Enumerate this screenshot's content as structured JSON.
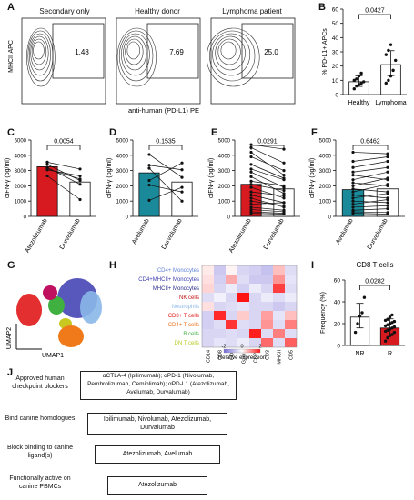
{
  "panel_labels": {
    "A": "A",
    "B": "B",
    "C": "C",
    "D": "D",
    "E": "E",
    "F": "F",
    "G": "G",
    "H": "H",
    "I": "I",
    "J": "J"
  },
  "panel_a": {
    "titles": [
      "Secondary only",
      "Healthy donor",
      "Lymphoma patient"
    ],
    "values": [
      "1.48",
      "7.69",
      "25.0"
    ],
    "y_label": "MHCII APC",
    "x_label": "anti-human (PD-L1) PE"
  },
  "chart_data": [
    {
      "id": "B",
      "type": "bar",
      "categories": [
        "Healthy",
        "Lymphoma"
      ],
      "values": [
        9,
        21
      ],
      "points": [
        [
          4,
          6,
          7,
          8,
          9,
          10,
          11,
          13,
          15
        ],
        [
          8,
          10,
          13,
          17,
          24,
          28,
          31,
          35
        ]
      ],
      "ylabel": "% PD-L1+ APCs",
      "ylim": [
        0,
        60
      ],
      "yticks": [
        0,
        10,
        20,
        30,
        40,
        50,
        60
      ],
      "pvalue": "0.0427",
      "colors": [
        "#ffffff",
        "#ffffff"
      ]
    },
    {
      "id": "C",
      "type": "bar-paired",
      "categories": [
        "Atezolizumab",
        "Durvalumab"
      ],
      "values": [
        3250,
        2250
      ],
      "pairs": [
        [
          3400,
          2350
        ],
        [
          3050,
          2650
        ],
        [
          3200,
          2100
        ],
        [
          3550,
          3100
        ],
        [
          2650,
          1100
        ],
        [
          3100,
          2450
        ]
      ],
      "ylabel": "cIFN-γ (pg/ml)",
      "ylim": [
        0,
        5000
      ],
      "yticks": [
        0,
        1000,
        2000,
        3000,
        4000,
        5000
      ],
      "pvalue": "0.0054",
      "colors": [
        "#d71920",
        "#ffffff"
      ]
    },
    {
      "id": "D",
      "type": "bar-paired",
      "categories": [
        "Avelumab",
        "Durvalumab"
      ],
      "values": [
        2850,
        2250
      ],
      "pairs": [
        [
          2350,
          3500
        ],
        [
          3350,
          3050
        ],
        [
          3150,
          1000
        ],
        [
          1050,
          1900
        ],
        [
          4050,
          2550
        ],
        [
          2050,
          1600
        ]
      ],
      "ylabel": "cIFN-γ (pg/ml)",
      "ylim": [
        0,
        5000
      ],
      "yticks": [
        0,
        1000,
        2000,
        3000,
        4000,
        5000
      ],
      "pvalue": "0.1535",
      "colors": [
        "#1a8a9a",
        "#ffffff"
      ]
    },
    {
      "id": "E",
      "type": "bar-paired",
      "categories": [
        "Atezolizumab",
        "Durvalumab"
      ],
      "values": [
        2100,
        1800
      ],
      "pairs": [
        [
          4700,
          4400
        ],
        [
          4500,
          3500
        ],
        [
          4200,
          2700
        ],
        [
          3900,
          3000
        ],
        [
          3400,
          2500
        ],
        [
          3100,
          2400
        ],
        [
          2900,
          1900
        ],
        [
          2600,
          1500
        ],
        [
          2300,
          2000
        ],
        [
          2100,
          1700
        ],
        [
          1900,
          1200
        ],
        [
          1600,
          1350
        ],
        [
          1400,
          900
        ],
        [
          1200,
          600
        ],
        [
          1000,
          700
        ],
        [
          800,
          900
        ],
        [
          600,
          400
        ],
        [
          450,
          300
        ],
        [
          300,
          200
        ],
        [
          200,
          150
        ]
      ],
      "ylabel": "cIFN-γ (pg/ml)",
      "ylim": [
        0,
        5000
      ],
      "yticks": [
        0,
        1000,
        2000,
        3000,
        4000,
        5000
      ],
      "pvalue": "0.0291",
      "colors": [
        "#d71920",
        "#ffffff"
      ]
    },
    {
      "id": "F",
      "type": "bar-paired",
      "categories": [
        "Avelumab",
        "Durvalumab"
      ],
      "values": [
        1750,
        1800
      ],
      "pairs": [
        [
          4200,
          4100
        ],
        [
          3600,
          3900
        ],
        [
          3200,
          3600
        ],
        [
          2900,
          3200
        ],
        [
          2700,
          2400
        ],
        [
          2400,
          2900
        ],
        [
          2200,
          2000
        ],
        [
          2000,
          2500
        ],
        [
          1800,
          1600
        ],
        [
          1600,
          2100
        ],
        [
          1400,
          1200
        ],
        [
          1200,
          1500
        ],
        [
          1000,
          900
        ],
        [
          800,
          1100
        ],
        [
          600,
          700
        ],
        [
          400,
          500
        ],
        [
          300,
          250
        ],
        [
          200,
          150
        ]
      ],
      "ylabel": "cIFN-γ (pg/ml)",
      "ylim": [
        0,
        5000
      ],
      "yticks": [
        0,
        1000,
        2000,
        3000,
        4000,
        5000
      ],
      "pvalue": "0.6462",
      "colors": [
        "#1a8a9a",
        "#ffffff"
      ]
    },
    {
      "id": "I",
      "type": "bar",
      "title": "CD8 T cells",
      "categories": [
        "NR",
        "R"
      ],
      "values": [
        26,
        16
      ],
      "points": [
        [
          12,
          20,
          27,
          30,
          44
        ],
        [
          4,
          7,
          9,
          10,
          12,
          13,
          14,
          15,
          16,
          17,
          18,
          19,
          20,
          21,
          22,
          23,
          24,
          26,
          28
        ]
      ],
      "ylabel": "Frequency (%)",
      "ylim": [
        0,
        60
      ],
      "yticks": [
        0,
        20,
        40,
        60
      ],
      "pvalue": "0.0282",
      "colors": [
        "#ffffff",
        "#d71920"
      ]
    }
  ],
  "panel_g": {
    "x_label": "UMAP1",
    "y_label": "UMAP2"
  },
  "panel_h": {
    "rows": [
      "CD4+ Monocytes",
      "CD4+MHCII+ Monocytes",
      "MHCII+ Monocytes",
      "NK cells",
      "Neutrophils",
      "CD8+ T cells",
      "CD4+ T cells",
      "B cells",
      "DN T cells"
    ],
    "row_colors": [
      "#5b7fd6",
      "#3b3bb0",
      "#2a2a8a",
      "#c01010",
      "#8ab8e8",
      "#e01818",
      "#e8701a",
      "#40b040",
      "#b8c820"
    ],
    "cols": [
      "CD14",
      "CD8",
      "CD4",
      "GzmB",
      "CD22",
      "CD3",
      "MHCII",
      "CD5"
    ],
    "legend_ticks": [
      "-2",
      "0",
      "2"
    ],
    "legend_label": "Relative expression",
    "matrix": [
      [
        0.2,
        -0.8,
        0.1,
        -0.6,
        -0.7,
        -0.9,
        0.6,
        -0.5
      ],
      [
        0.3,
        -0.7,
        0.8,
        -0.5,
        -0.8,
        -0.8,
        1.0,
        -0.4
      ],
      [
        0.4,
        -0.6,
        -0.3,
        -0.7,
        -0.3,
        -0.6,
        1.8,
        -0.5
      ],
      [
        -0.5,
        -0.2,
        -0.6,
        2.2,
        -0.6,
        -0.3,
        -0.5,
        -0.3
      ],
      [
        0.3,
        -0.6,
        -0.5,
        -0.4,
        -0.6,
        -0.6,
        -0.8,
        -0.6
      ],
      [
        -0.7,
        2.0,
        -0.6,
        0.5,
        -0.6,
        0.9,
        -0.4,
        0.6
      ],
      [
        -0.7,
        -0.5,
        1.9,
        -0.5,
        -0.6,
        1.0,
        -0.5,
        1.2
      ],
      [
        -0.6,
        -0.6,
        -0.5,
        -0.6,
        2.1,
        -0.5,
        1.2,
        -0.5
      ],
      [
        -0.6,
        -0.4,
        -0.5,
        -0.3,
        -0.6,
        1.4,
        -0.5,
        1.5
      ]
    ]
  },
  "panel_j": {
    "rows": [
      {
        "label": "Approved human checkpoint blockers",
        "text": "αCTLA-4 (Ipilimumab); αPD-1 (Nivolumab, Pembrolizumab, Cemiplimab); αPD-L1 (Atezolizumab, Avelumab, Durvalumab)"
      },
      {
        "label": "Bind canine homologues",
        "text": "Ipilimumab, Nivolumab, Atezolizumab, Durvalumab"
      },
      {
        "label": "Block binding to canine ligand(s)",
        "text": "Atezolizumab, Avelumab"
      },
      {
        "label": "Functionally active on canine PBMCs",
        "text": "Atezolizumab"
      }
    ]
  }
}
